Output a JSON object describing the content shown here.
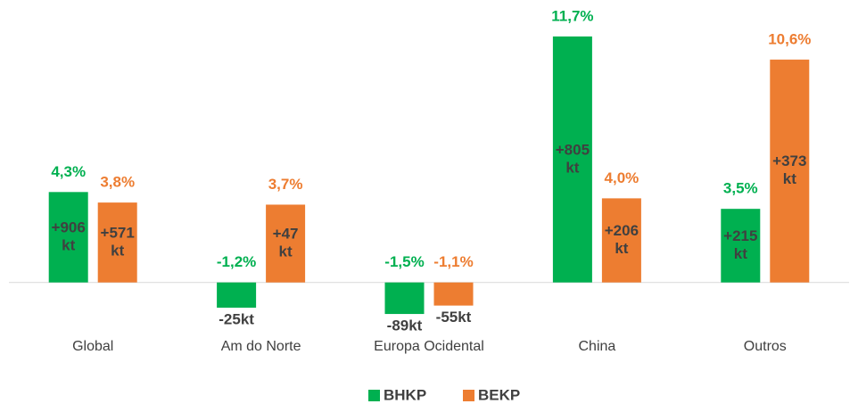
{
  "chart_data": {
    "type": "bar",
    "categories": [
      "Global",
      "Am do Norte",
      "Europa Ocidental",
      "China",
      "Outros"
    ],
    "series": [
      {
        "name": "BHKP",
        "color": "#00b050",
        "values": [
          4.3,
          -1.2,
          -1.5,
          11.7,
          3.5
        ],
        "value_labels": [
          "4,3%",
          "-1,2%",
          "-1,5%",
          "11,7%",
          "3,5%"
        ],
        "volume_labels": [
          [
            "+906",
            "kt"
          ],
          [
            "-25kt"
          ],
          [
            "-89kt"
          ],
          [
            "+805",
            "kt"
          ],
          [
            "+215",
            "kt"
          ]
        ]
      },
      {
        "name": "BEKP",
        "color": "#ed7d31",
        "values": [
          3.8,
          3.7,
          -1.1,
          4.0,
          10.6
        ],
        "value_labels": [
          "3,8%",
          "3,7%",
          "-1,1%",
          "4,0%",
          "10,6%"
        ],
        "volume_labels": [
          [
            "+571",
            "kt"
          ],
          [
            "+47",
            "kt"
          ],
          [
            "-55kt"
          ],
          [
            "+206",
            "kt"
          ],
          [
            "+373",
            "kt"
          ]
        ]
      }
    ],
    "ylim": [
      -4,
      12.5
    ],
    "legend": "bottom"
  }
}
